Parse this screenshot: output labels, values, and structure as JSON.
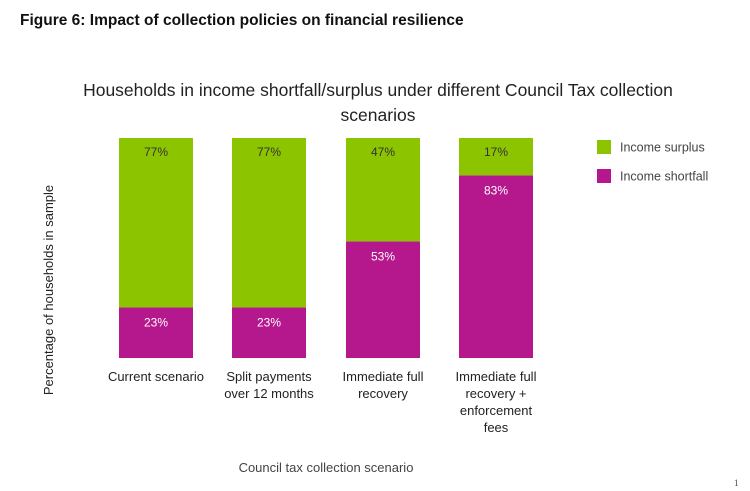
{
  "figure_title": "Figure 6: Impact of collection policies on financial resilience",
  "page_number": "1",
  "chart_data": {
    "type": "bar",
    "stacked": true,
    "title": "Households in income shortfall/surplus under different Council Tax collection scenarios",
    "xlabel": "Council tax collection scenario",
    "ylabel": "Percentage of households in sample",
    "ylim": [
      0,
      100
    ],
    "grid": false,
    "legend_position": "right",
    "categories": [
      [
        "Current scenario"
      ],
      [
        "Split payments",
        "over 12 months"
      ],
      [
        "Immediate full",
        "recovery"
      ],
      [
        "Immediate full",
        "recovery +",
        "enforcement",
        "fees"
      ]
    ],
    "series": [
      {
        "name": "Income shortfall",
        "color": "#b5178c",
        "values": [
          23,
          23,
          53,
          83
        ],
        "labels": [
          "23%",
          "23%",
          "53%",
          "83%"
        ]
      },
      {
        "name": "Income surplus",
        "color": "#8cc400",
        "values": [
          77,
          77,
          47,
          17
        ],
        "labels": [
          "77%",
          "77%",
          "47%",
          "17%"
        ]
      }
    ]
  }
}
